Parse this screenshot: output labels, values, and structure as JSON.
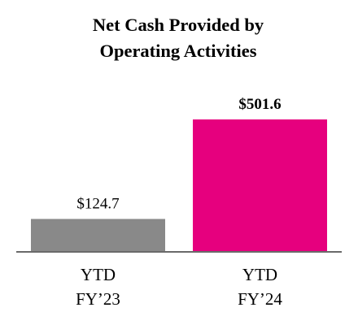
{
  "chart_data": {
    "type": "bar",
    "title": "Net Cash Provided by Operating Activities",
    "title_lines": [
      "Net Cash Provided by",
      "Operating Activities"
    ],
    "categories": [
      {
        "line1": "YTD",
        "line2": "FY’23"
      },
      {
        "line1": "YTD",
        "line2": "FY’24"
      }
    ],
    "values": [
      124.7,
      501.6
    ],
    "value_labels": [
      "$124.7",
      "$501.6"
    ],
    "value_label_bold": [
      false,
      true
    ],
    "colors": [
      "#898989",
      "#e6007e"
    ],
    "baseline_color": "#6a6a6a",
    "xlabel": "",
    "ylabel": "",
    "ylim": [
      0,
      501.6
    ],
    "grid": false,
    "legend": "none"
  }
}
